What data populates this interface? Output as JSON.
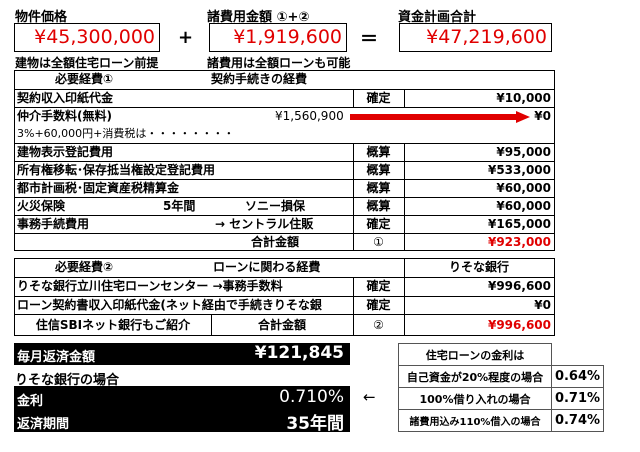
{
  "top": {
    "property_label": "物件価格",
    "property_value": "¥45,300,000",
    "plus": "+",
    "expenses_label": "諸費用金額 ①+②",
    "expenses_value": "¥1,919,600",
    "equals": "＝",
    "total_label": "資金計画合計",
    "total_value": "¥47,219,600",
    "note_left": "建物は全額住宅ローン前提",
    "note_mid": "諸費用は全額ローンも可能"
  },
  "table1": {
    "header_left": "必要経費①",
    "header_mid": "契約手続きの経費",
    "rows": [
      {
        "item": "契約収入印紙代金",
        "status": "確定",
        "amount": "¥10,000"
      },
      {
        "item": "建物表示登記費用",
        "status": "概算",
        "amount": "¥95,000"
      },
      {
        "item": "所有権移転･保存抵当権設定登記費用",
        "status": "概算",
        "amount": "¥533,000"
      },
      {
        "item": "都市計画税･固定資産税精算金",
        "status": "概算",
        "amount": "¥60,000"
      },
      {
        "item": "火災保険",
        "extra1": "5年間",
        "extra2": "ソニー損保",
        "status": "概算",
        "amount": "¥60,000"
      },
      {
        "item": "事務手続費用",
        "extra2": "→ セントラル住販",
        "status": "確定",
        "amount": "¥165,000"
      }
    ],
    "brokerage": {
      "item": "仲介手数料(無料)",
      "original": "¥1,560,900",
      "amount": "¥0",
      "note": "3%+60,000円+消費税は・・・・・・・・"
    },
    "total_label": "合計金額",
    "total_mark": "①",
    "total_amount": "¥923,000"
  },
  "table2": {
    "header_left": "必要経費②",
    "header_mid": "ローンに関わる経費",
    "header_right": "りそな銀行",
    "rows": [
      {
        "item": "りそな銀行立川住宅ローンセンター →事務手数料",
        "status": "確定",
        "amount": "¥996,600"
      },
      {
        "item": "ローン契約書収入印紙代金(ネット経由で手続きりそな銀",
        "status": "確定",
        "amount": "¥0"
      }
    ],
    "footer_note": "住信SBIネット銀行もご紹介",
    "total_label": "合計金額",
    "total_mark": "②",
    "total_amount": "¥996,600"
  },
  "payment": {
    "monthly_label": "毎月返済金額",
    "monthly_value": "¥121,845",
    "bank_note": "りそな銀行の場合",
    "rate_label": "金利",
    "rate_value": "0.710%",
    "term_label": "返済期間",
    "term_value": "35年間",
    "arrow": "←"
  },
  "rates": {
    "header": "住宅ローンの金利は",
    "rows": [
      {
        "case": "自己資金が20%程度の場合",
        "rate": "0.64%"
      },
      {
        "case": "100%借り入れの場合",
        "rate": "0.71%"
      },
      {
        "case": "諸費用込み110%借入の場合",
        "rate": "0.74%"
      }
    ]
  },
  "colors": {
    "red": "#e00000",
    "arrow": "#e00000"
  }
}
